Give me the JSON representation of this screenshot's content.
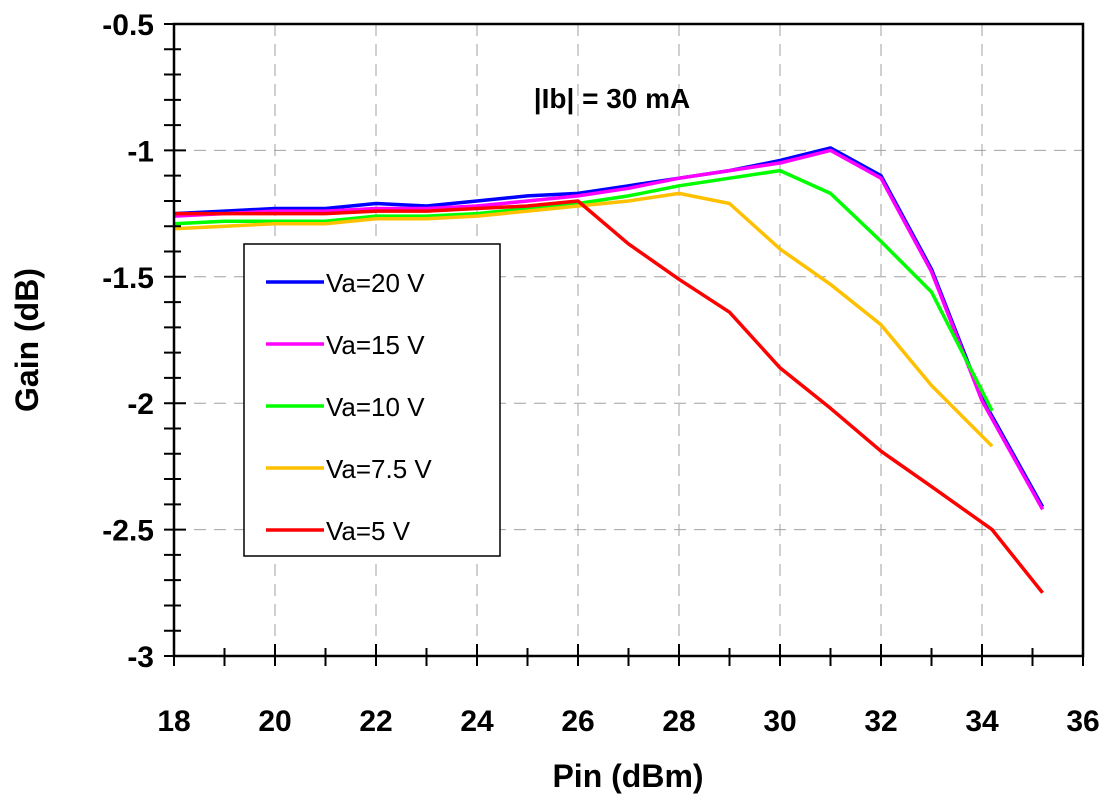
{
  "chart_data": {
    "type": "line",
    "title": "",
    "annotation": "|Ib| = 30 mA",
    "xlabel": "Pin (dBm)",
    "ylabel": "Gain (dB)",
    "xlim": [
      18,
      36
    ],
    "ylim": [
      -3,
      -0.5
    ],
    "xticks": [
      18,
      20,
      22,
      24,
      26,
      28,
      30,
      32,
      34,
      36
    ],
    "yticks": [
      -0.5,
      -1,
      -1.5,
      -2,
      -2.5,
      -3
    ],
    "xtick_labels": [
      "18",
      "20",
      "22",
      "24",
      "26",
      "28",
      "30",
      "32",
      "34",
      "36"
    ],
    "ytick_labels": [
      "-0.5",
      "-1",
      "-1.5",
      "-2",
      "-2.5",
      "-3"
    ],
    "grid": true,
    "legend_position": "left",
    "series": [
      {
        "name": "Va=20 V",
        "color": "#0000ff",
        "x": [
          18,
          19,
          20,
          21,
          22,
          23,
          24,
          25,
          26,
          27,
          28,
          29,
          30,
          31,
          32,
          33,
          34,
          35.2
        ],
        "y": [
          -1.25,
          -1.24,
          -1.23,
          -1.23,
          -1.21,
          -1.22,
          -1.2,
          -1.18,
          -1.17,
          -1.14,
          -1.11,
          -1.08,
          -1.04,
          -0.99,
          -1.1,
          -1.47,
          -1.98,
          -2.41
        ]
      },
      {
        "name": "Va=15 V",
        "color": "#ff00ff",
        "x": [
          18,
          19,
          20,
          21,
          22,
          23,
          24,
          25,
          26,
          27,
          28,
          29,
          30,
          31,
          32,
          33,
          34,
          35.2
        ],
        "y": [
          -1.26,
          -1.25,
          -1.24,
          -1.24,
          -1.23,
          -1.23,
          -1.22,
          -1.2,
          -1.18,
          -1.15,
          -1.11,
          -1.08,
          -1.05,
          -1.0,
          -1.11,
          -1.48,
          -1.99,
          -2.42
        ]
      },
      {
        "name": "Va=10 V",
        "color": "#00ff00",
        "x": [
          18,
          19,
          20,
          21,
          22,
          23,
          24,
          25,
          26,
          27,
          28,
          29,
          30,
          31,
          32,
          33,
          34.2
        ],
        "y": [
          -1.29,
          -1.28,
          -1.28,
          -1.28,
          -1.26,
          -1.26,
          -1.25,
          -1.23,
          -1.21,
          -1.18,
          -1.14,
          -1.11,
          -1.08,
          -1.17,
          -1.36,
          -1.56,
          -2.03
        ]
      },
      {
        "name": "Va=7.5 V",
        "color": "#ffc000",
        "x": [
          18,
          19,
          20,
          21,
          22,
          23,
          24,
          25,
          26,
          27,
          28,
          29,
          30,
          31,
          32,
          33,
          34.2
        ],
        "y": [
          -1.31,
          -1.3,
          -1.29,
          -1.29,
          -1.27,
          -1.27,
          -1.26,
          -1.24,
          -1.22,
          -1.2,
          -1.17,
          -1.21,
          -1.39,
          -1.53,
          -1.69,
          -1.93,
          -2.17
        ]
      },
      {
        "name": "Va=5 V",
        "color": "#ff0000",
        "x": [
          18,
          19,
          20,
          21,
          22,
          23,
          24,
          25,
          26,
          27,
          28,
          29,
          30,
          31,
          32,
          33,
          34.2,
          35.2
        ],
        "y": [
          -1.25,
          -1.25,
          -1.25,
          -1.25,
          -1.24,
          -1.24,
          -1.23,
          -1.22,
          -1.2,
          -1.37,
          -1.51,
          -1.64,
          -1.86,
          -2.02,
          -2.19,
          -2.33,
          -2.5,
          -2.75
        ]
      }
    ]
  }
}
